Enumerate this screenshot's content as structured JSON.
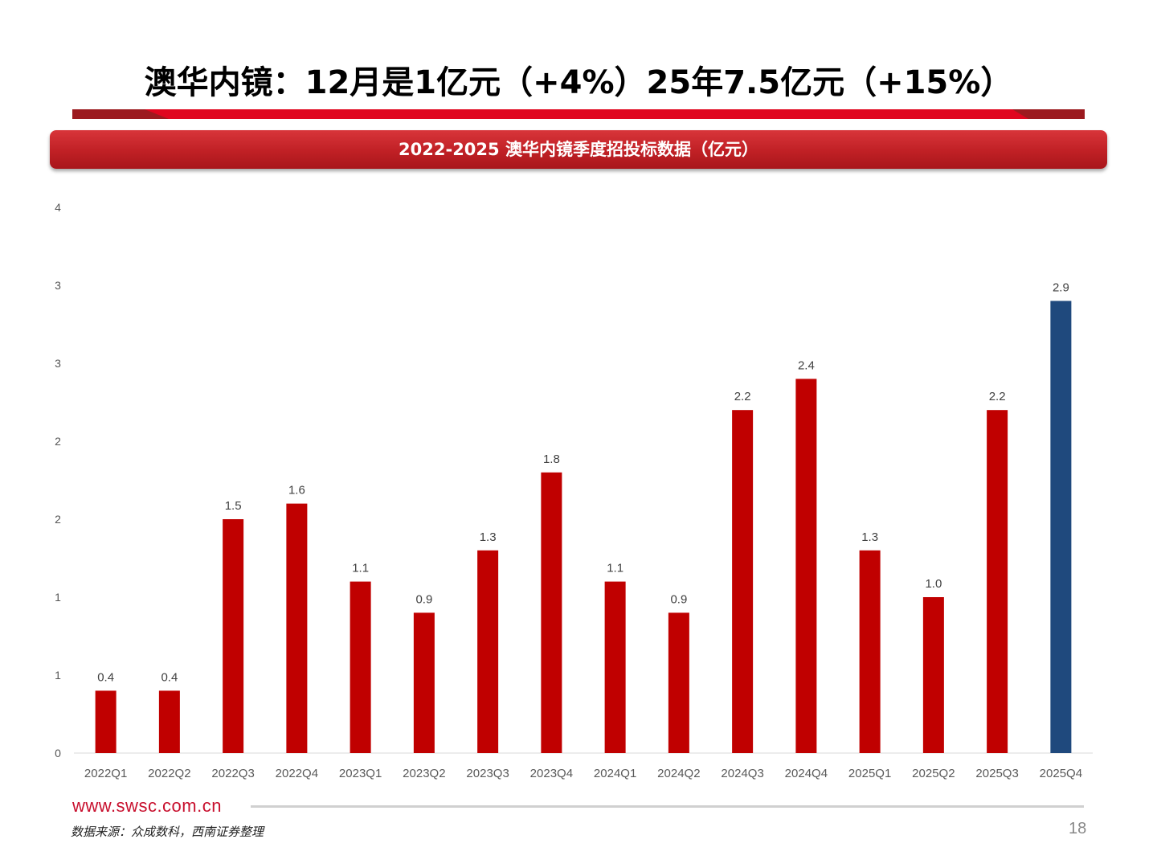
{
  "page": {
    "title": "澳华内镜：12月是1亿元（+4%）25年7.5亿元（+15%）",
    "banner": "2022-2025 澳华内镜季度招投标数据（亿元）",
    "website": "www.swsc.com.cn",
    "source": "数据来源：众成数科，西南证券整理",
    "page_number": "18"
  },
  "colors": {
    "bar": "#c00000",
    "highlight_bar": "#1f497d",
    "accent": "#c8102e"
  },
  "chart_data": {
    "type": "bar",
    "title": "",
    "xlabel": "",
    "ylabel": "",
    "categories": [
      "2022Q1",
      "2022Q2",
      "2022Q3",
      "2022Q4",
      "2023Q1",
      "2023Q2",
      "2023Q3",
      "2023Q4",
      "2024Q1",
      "2024Q2",
      "2024Q3",
      "2024Q4",
      "2025Q1",
      "2025Q2",
      "2025Q3",
      "2025Q4"
    ],
    "values": [
      0.4,
      0.4,
      1.5,
      1.6,
      1.1,
      0.9,
      1.3,
      1.8,
      1.1,
      0.9,
      2.2,
      2.4,
      1.3,
      1.0,
      2.2,
      2.9
    ],
    "data_labels": [
      "0.4",
      "0.4",
      "1.5",
      "1.6",
      "1.1",
      "0.9",
      "1.3",
      "1.8",
      "1.1",
      "0.9",
      "2.2",
      "2.4",
      "1.3",
      "1.0",
      "2.2",
      "2.9"
    ],
    "yticks": [
      "0",
      "1",
      "1",
      "2",
      "2",
      "3",
      "3",
      "4"
    ],
    "ylim": [
      0,
      3.5
    ],
    "highlight_index": 15,
    "grid": false
  }
}
